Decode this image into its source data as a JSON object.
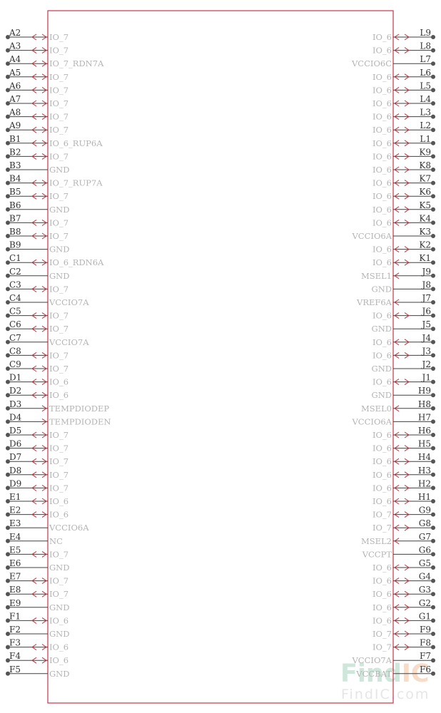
{
  "colors": {
    "body_outline": "#c8344a",
    "pin_line": "#404040",
    "pin_dot": "#555555",
    "arrow": "#c0343f",
    "pin_number_text": "#333333",
    "pin_name_text": "#b4b4b4",
    "watermark_green": "#cfe7db",
    "watermark_orange": "#f8dcc8",
    "watermark_url": "#e6e6e6"
  },
  "watermark": {
    "logo_part1": "Find",
    "logo_part2": "IC",
    "url": "FindIC.com"
  },
  "left_pins": [
    {
      "num": "A2",
      "name": "IO_7",
      "type": "bidir"
    },
    {
      "num": "A3",
      "name": "IO_7",
      "type": "bidir"
    },
    {
      "num": "A4",
      "name": "IO_7_RDN7A",
      "type": "bidir"
    },
    {
      "num": "A5",
      "name": "IO_7",
      "type": "bidir"
    },
    {
      "num": "A6",
      "name": "IO_7",
      "type": "bidir"
    },
    {
      "num": "A7",
      "name": "IO_7",
      "type": "bidir"
    },
    {
      "num": "A8",
      "name": "IO_7",
      "type": "bidir"
    },
    {
      "num": "A9",
      "name": "IO_7",
      "type": "bidir"
    },
    {
      "num": "B1",
      "name": "IO_6_RUP6A",
      "type": "bidir"
    },
    {
      "num": "B2",
      "name": "IO_7",
      "type": "bidir"
    },
    {
      "num": "B3",
      "name": "GND",
      "type": "power"
    },
    {
      "num": "B4",
      "name": "IO_7_RUP7A",
      "type": "bidir"
    },
    {
      "num": "B5",
      "name": "IO_7",
      "type": "bidir"
    },
    {
      "num": "B6",
      "name": "GND",
      "type": "power"
    },
    {
      "num": "B7",
      "name": "IO_7",
      "type": "bidir"
    },
    {
      "num": "B8",
      "name": "IO_7",
      "type": "bidir"
    },
    {
      "num": "B9",
      "name": "GND",
      "type": "power"
    },
    {
      "num": "C1",
      "name": "IO_6_RDN6A",
      "type": "bidir"
    },
    {
      "num": "C2",
      "name": "GND",
      "type": "power"
    },
    {
      "num": "C3",
      "name": "IO_7",
      "type": "bidir"
    },
    {
      "num": "C4",
      "name": "VCCIO7A",
      "type": "power"
    },
    {
      "num": "C5",
      "name": "IO_7",
      "type": "bidir"
    },
    {
      "num": "C6",
      "name": "IO_7",
      "type": "bidir"
    },
    {
      "num": "C7",
      "name": "VCCIO7A",
      "type": "power"
    },
    {
      "num": "C8",
      "name": "IO_7",
      "type": "bidir"
    },
    {
      "num": "C9",
      "name": "IO_7",
      "type": "bidir"
    },
    {
      "num": "D1",
      "name": "IO_6",
      "type": "bidir"
    },
    {
      "num": "D2",
      "name": "IO_6",
      "type": "bidir"
    },
    {
      "num": "D3",
      "name": "TEMPDIODEP",
      "type": "input"
    },
    {
      "num": "D4",
      "name": "TEMPDIODEN",
      "type": "input"
    },
    {
      "num": "D5",
      "name": "IO_7",
      "type": "bidir"
    },
    {
      "num": "D6",
      "name": "IO_7",
      "type": "bidir"
    },
    {
      "num": "D7",
      "name": "IO_7",
      "type": "bidir"
    },
    {
      "num": "D8",
      "name": "IO_7",
      "type": "bidir"
    },
    {
      "num": "D9",
      "name": "IO_7",
      "type": "bidir"
    },
    {
      "num": "E1",
      "name": "IO_6",
      "type": "bidir"
    },
    {
      "num": "E2",
      "name": "IO_6",
      "type": "bidir"
    },
    {
      "num": "E3",
      "name": "VCCIO6A",
      "type": "power"
    },
    {
      "num": "E4",
      "name": "NC",
      "type": "power"
    },
    {
      "num": "E5",
      "name": "IO_7",
      "type": "bidir"
    },
    {
      "num": "E6",
      "name": "GND",
      "type": "power"
    },
    {
      "num": "E7",
      "name": "IO_7",
      "type": "bidir"
    },
    {
      "num": "E8",
      "name": "IO_7",
      "type": "bidir"
    },
    {
      "num": "E9",
      "name": "GND",
      "type": "power"
    },
    {
      "num": "F1",
      "name": "IO_6",
      "type": "bidir"
    },
    {
      "num": "F2",
      "name": "GND",
      "type": "power"
    },
    {
      "num": "F3",
      "name": "IO_6",
      "type": "bidir"
    },
    {
      "num": "F4",
      "name": "IO_6",
      "type": "bidir"
    },
    {
      "num": "F5",
      "name": "GND",
      "type": "power"
    }
  ],
  "right_pins": [
    {
      "num": "L9",
      "name": "IO_6",
      "type": "bidir"
    },
    {
      "num": "L8",
      "name": "IO_6",
      "type": "bidir"
    },
    {
      "num": "L7",
      "name": "VCCIO6C",
      "type": "power"
    },
    {
      "num": "L6",
      "name": "IO_6",
      "type": "bidir"
    },
    {
      "num": "L5",
      "name": "IO_6",
      "type": "bidir"
    },
    {
      "num": "L4",
      "name": "IO_6",
      "type": "bidir"
    },
    {
      "num": "L3",
      "name": "IO_6",
      "type": "bidir"
    },
    {
      "num": "L2",
      "name": "IO_6",
      "type": "bidir"
    },
    {
      "num": "L1",
      "name": "IO_6",
      "type": "bidir"
    },
    {
      "num": "K9",
      "name": "IO_6",
      "type": "bidir"
    },
    {
      "num": "K8",
      "name": "IO_6",
      "type": "bidir"
    },
    {
      "num": "K7",
      "name": "IO_6",
      "type": "bidir"
    },
    {
      "num": "K6",
      "name": "IO_6",
      "type": "bidir"
    },
    {
      "num": "K5",
      "name": "IO_6",
      "type": "bidir"
    },
    {
      "num": "K4",
      "name": "IO_6",
      "type": "bidir"
    },
    {
      "num": "K3",
      "name": "VCCIO6A",
      "type": "power"
    },
    {
      "num": "K2",
      "name": "IO_6",
      "type": "bidir"
    },
    {
      "num": "K1",
      "name": "IO_6",
      "type": "bidir"
    },
    {
      "num": "J9",
      "name": "MSEL1",
      "type": "input"
    },
    {
      "num": "J8",
      "name": "GND",
      "type": "power"
    },
    {
      "num": "J7",
      "name": "VREF6A",
      "type": "input"
    },
    {
      "num": "J6",
      "name": "IO_6",
      "type": "bidir"
    },
    {
      "num": "J5",
      "name": "GND",
      "type": "power"
    },
    {
      "num": "J4",
      "name": "IO_6",
      "type": "bidir"
    },
    {
      "num": "J3",
      "name": "IO_6",
      "type": "bidir"
    },
    {
      "num": "J2",
      "name": "GND",
      "type": "power"
    },
    {
      "num": "J1",
      "name": "IO_6",
      "type": "bidir"
    },
    {
      "num": "H9",
      "name": "GND",
      "type": "power"
    },
    {
      "num": "H8",
      "name": "MSEL0",
      "type": "input"
    },
    {
      "num": "H7",
      "name": "VCCIO6A",
      "type": "power"
    },
    {
      "num": "H6",
      "name": "IO_6",
      "type": "bidir"
    },
    {
      "num": "H5",
      "name": "IO_6",
      "type": "bidir"
    },
    {
      "num": "H4",
      "name": "IO_6",
      "type": "bidir"
    },
    {
      "num": "H3",
      "name": "IO_6",
      "type": "bidir"
    },
    {
      "num": "H2",
      "name": "IO_6",
      "type": "bidir"
    },
    {
      "num": "H1",
      "name": "IO_6",
      "type": "bidir"
    },
    {
      "num": "G9",
      "name": "IO_7",
      "type": "bidir"
    },
    {
      "num": "G8",
      "name": "IO_7",
      "type": "bidir"
    },
    {
      "num": "G7",
      "name": "MSEL2",
      "type": "input"
    },
    {
      "num": "G6",
      "name": "VCCPT",
      "type": "power"
    },
    {
      "num": "G5",
      "name": "IO_6",
      "type": "bidir"
    },
    {
      "num": "G4",
      "name": "IO_6",
      "type": "bidir"
    },
    {
      "num": "G3",
      "name": "IO_6",
      "type": "bidir"
    },
    {
      "num": "G2",
      "name": "IO_6",
      "type": "bidir"
    },
    {
      "num": "G1",
      "name": "IO_6",
      "type": "bidir"
    },
    {
      "num": "F9",
      "name": "IO_7",
      "type": "bidir"
    },
    {
      "num": "F8",
      "name": "IO_7",
      "type": "bidir"
    },
    {
      "num": "F7",
      "name": "VCCIO7A",
      "type": "power"
    },
    {
      "num": "F6",
      "name": "VCCBAT",
      "type": "power"
    }
  ]
}
